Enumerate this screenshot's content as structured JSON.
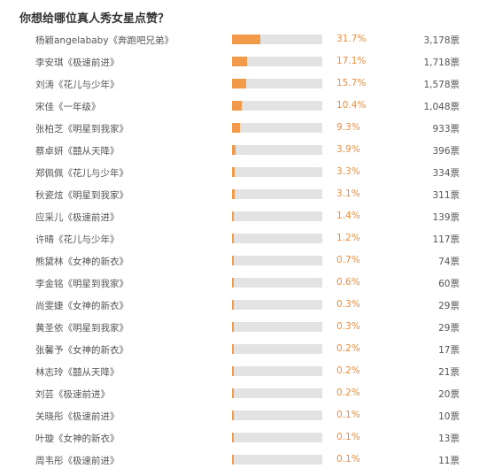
{
  "poll": {
    "question": "你想给哪位真人秀女星点赞？",
    "options": [
      {
        "name": "杨颖angelababy《奔跑吧兄弟》",
        "percent": "31.7%",
        "share": 31.7,
        "votes": "3,178票"
      },
      {
        "name": "李安琪《极速前进》",
        "percent": "17.1%",
        "share": 17.1,
        "votes": "1,718票"
      },
      {
        "name": "刘涛《花儿与少年》",
        "percent": "15.7%",
        "share": 15.7,
        "votes": "1,578票"
      },
      {
        "name": "宋佳《一年级》",
        "percent": "10.4%",
        "share": 10.4,
        "votes": "1,048票"
      },
      {
        "name": "张柏芝《明星到我家》",
        "percent": "9.3%",
        "share": 9.3,
        "votes": "933票"
      },
      {
        "name": "蔡卓妍《囍从天降》",
        "percent": "3.9%",
        "share": 3.9,
        "votes": "396票"
      },
      {
        "name": "郑佩佩《花儿与少年》",
        "percent": "3.3%",
        "share": 3.3,
        "votes": "334票"
      },
      {
        "name": "秋瓷炫《明星到我家》",
        "percent": "3.1%",
        "share": 3.1,
        "votes": "311票"
      },
      {
        "name": "应采儿《极速前进》",
        "percent": "1.4%",
        "share": 1.4,
        "votes": "139票"
      },
      {
        "name": "许晴《花儿与少年》",
        "percent": "1.2%",
        "share": 1.2,
        "votes": "117票"
      },
      {
        "name": "熊黛林《女神的新衣》",
        "percent": "0.7%",
        "share": 0.7,
        "votes": "74票"
      },
      {
        "name": "李金铭《明星到我家》",
        "percent": "0.6%",
        "share": 0.6,
        "votes": "60票"
      },
      {
        "name": "尚雯婕《女神的新衣》",
        "percent": "0.3%",
        "share": 0.3,
        "votes": "29票"
      },
      {
        "name": "黄圣依《明星到我家》",
        "percent": "0.3%",
        "share": 0.3,
        "votes": "29票"
      },
      {
        "name": "张馨予《女神的新衣》",
        "percent": "0.2%",
        "share": 0.2,
        "votes": "17票"
      },
      {
        "name": "林志玲《囍从天降》",
        "percent": "0.2%",
        "share": 0.2,
        "votes": "21票"
      },
      {
        "name": "刘芸《极速前进》",
        "percent": "0.2%",
        "share": 0.2,
        "votes": "20票"
      },
      {
        "name": "关晓彤《极速前进》",
        "percent": "0.1%",
        "share": 0.1,
        "votes": "10票"
      },
      {
        "name": "叶璇《女神的新衣》",
        "percent": "0.1%",
        "share": 0.1,
        "votes": "13票"
      },
      {
        "name": "周韦彤《极速前进》",
        "percent": "0.1%",
        "share": 0.1,
        "votes": "11票"
      }
    ]
  },
  "colors": {
    "bar_fill": "#f39a4a",
    "bar_track": "#e3e3e3",
    "percent_text": "#f08c3c",
    "label_text": "#555555"
  }
}
